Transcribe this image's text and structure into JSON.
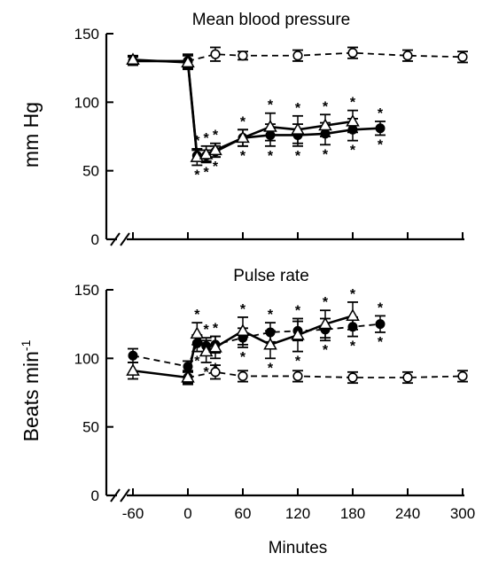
{
  "chart_data": [
    {
      "type": "line",
      "title": "Mean blood pressure",
      "ylabel": "mm Hg",
      "xlabel": "",
      "ylim": [
        0,
        150
      ],
      "yticks": [
        0,
        50,
        100,
        150
      ],
      "xlim": [
        -60,
        300
      ],
      "xticks": [
        -60,
        0,
        60,
        120,
        180,
        240,
        300
      ],
      "axis_break": true,
      "grid": false,
      "series": [
        {
          "marker": "open-circle",
          "line": "dashed",
          "x": [
            0,
            30,
            60,
            120,
            180,
            240,
            300
          ],
          "y": [
            130,
            135,
            134,
            134,
            136,
            134,
            133
          ],
          "error": [
            5,
            5,
            3,
            4,
            4,
            4,
            4
          ]
        },
        {
          "marker": "filled-circle",
          "line": "solid",
          "x": [
            -60,
            0,
            10,
            20,
            30,
            60,
            90,
            120,
            150,
            180,
            210
          ],
          "y": [
            130,
            130,
            61,
            61,
            64,
            74,
            76,
            76,
            77,
            80,
            81
          ],
          "error": [
            3,
            4,
            4,
            4,
            4,
            6,
            8,
            8,
            8,
            8,
            5
          ]
        },
        {
          "marker": "open-triangle",
          "line": "solid",
          "x": [
            -60,
            0,
            10,
            20,
            30,
            60,
            90,
            120,
            150,
            180
          ],
          "y": [
            131,
            129,
            60,
            62,
            65,
            74,
            82,
            80,
            83,
            86
          ],
          "error": [
            3,
            5,
            6,
            6,
            5,
            6,
            10,
            10,
            8,
            8
          ]
        }
      ],
      "significance_marker": "*",
      "significance_x": [
        10,
        20,
        30,
        60,
        90,
        120,
        150,
        180,
        210
      ]
    },
    {
      "type": "line",
      "title": "Pulse rate",
      "ylabel": "Beats min",
      "ylabel_superscript": "-1",
      "xlabel": "Minutes",
      "ylim": [
        0,
        150
      ],
      "yticks": [
        0,
        50,
        100,
        150
      ],
      "xlim": [
        -60,
        300
      ],
      "xticks": [
        -60,
        0,
        60,
        120,
        180,
        240,
        300
      ],
      "axis_break": true,
      "grid": false,
      "series": [
        {
          "marker": "open-circle",
          "line": "dashed",
          "x": [
            0,
            30,
            60,
            120,
            180,
            240,
            300
          ],
          "y": [
            86,
            90,
            87,
            87,
            86,
            86,
            87
          ],
          "error": [
            4,
            5,
            4,
            4,
            4,
            4,
            4
          ]
        },
        {
          "marker": "filled-circle",
          "line": "dashed",
          "x": [
            -60,
            0,
            10,
            20,
            30,
            60,
            90,
            120,
            150,
            180,
            210
          ],
          "y": [
            102,
            94,
            111,
            109,
            110,
            115,
            119,
            120,
            121,
            123,
            125
          ],
          "error": [
            5,
            4,
            6,
            6,
            6,
            7,
            7,
            7,
            8,
            7,
            6
          ]
        },
        {
          "marker": "open-triangle",
          "line": "solid",
          "x": [
            -60,
            0,
            10,
            20,
            30,
            60,
            90,
            120,
            150,
            180
          ],
          "y": [
            91,
            86,
            118,
            105,
            108,
            120,
            110,
            117,
            125,
            131
          ],
          "error": [
            6,
            5,
            8,
            8,
            8,
            10,
            10,
            12,
            10,
            10
          ]
        }
      ],
      "significance_marker": "*",
      "significance_x": [
        10,
        20,
        30,
        60,
        90,
        120,
        150,
        180,
        210
      ]
    }
  ]
}
